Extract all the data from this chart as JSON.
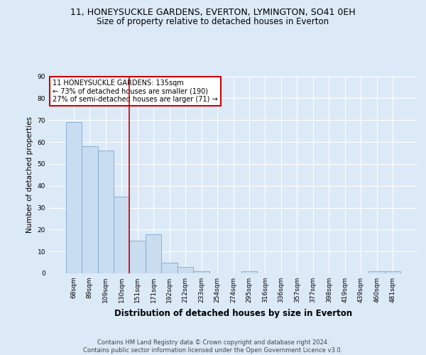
{
  "title_line1": "11, HONEYSUCKLE GARDENS, EVERTON, LYMINGTON, SO41 0EH",
  "title_line2": "Size of property relative to detached houses in Everton",
  "xlabel": "Distribution of detached houses by size in Everton",
  "ylabel": "Number of detached properties",
  "categories": [
    "68sqm",
    "89sqm",
    "109sqm",
    "130sqm",
    "151sqm",
    "171sqm",
    "192sqm",
    "212sqm",
    "233sqm",
    "254sqm",
    "274sqm",
    "295sqm",
    "316sqm",
    "336sqm",
    "357sqm",
    "377sqm",
    "398sqm",
    "419sqm",
    "439sqm",
    "460sqm",
    "481sqm"
  ],
  "values": [
    69,
    58,
    56,
    35,
    15,
    18,
    5,
    3,
    1,
    0,
    0,
    1,
    0,
    0,
    0,
    0,
    0,
    0,
    0,
    1,
    1
  ],
  "bar_color": "#c9dcf0",
  "bar_edge_color": "#7aadd4",
  "vline_x": 3.5,
  "vline_color": "#cc0000",
  "annotation_text": "11 HONEYSUCKLE GARDENS: 135sqm\n← 73% of detached houses are smaller (190)\n27% of semi-detached houses are larger (71) →",
  "annotation_box_color": "#ffffff",
  "annotation_box_edge_color": "#cc0000",
  "ylim": [
    0,
    90
  ],
  "yticks": [
    0,
    10,
    20,
    30,
    40,
    50,
    60,
    70,
    80,
    90
  ],
  "footnote": "Contains HM Land Registry data © Crown copyright and database right 2024.\nContains public sector information licensed under the Open Government Licence v3.0.",
  "bg_color": "#dce9f7",
  "plot_bg_color": "#dce9f7",
  "grid_color": "#ffffff",
  "title_fontsize": 9,
  "subtitle_fontsize": 8.5,
  "ylabel_fontsize": 7.5,
  "xlabel_fontsize": 8.5,
  "tick_fontsize": 6.5,
  "annot_fontsize": 7,
  "footnote_fontsize": 6
}
